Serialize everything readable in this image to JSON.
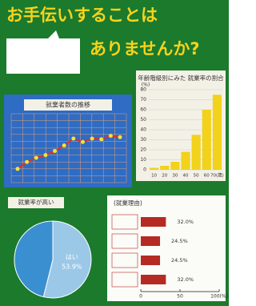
{
  "title_line1": "お手伝いすることは",
  "title_line2": "ありませんか?",
  "chart_data": [
    {
      "type": "line",
      "title": "就業者数の推移",
      "values": [
        2,
        3,
        3.6,
        4,
        4.6,
        5.4,
        6.4,
        5.9,
        6.4,
        6.3,
        6.8,
        6.6
      ],
      "color": "#e03020",
      "ylim": [
        0,
        10
      ]
    },
    {
      "type": "bar",
      "title": "年齢階級別にみた 就業率の割合",
      "categories": [
        "10",
        "20",
        "30",
        "40",
        "50",
        "60",
        "70(歳)"
      ],
      "values": [
        2,
        4,
        8,
        18,
        35,
        60,
        75
      ],
      "color": "#f2d21a",
      "ylim": [
        0,
        80
      ],
      "yticks": [
        0,
        10,
        20,
        30,
        40,
        50,
        60,
        70,
        80
      ],
      "ylabel": "(%)"
    },
    {
      "type": "pie",
      "title": "就業率が高い",
      "values": [
        53.9,
        46.1
      ],
      "value_labels": [
        "53.9%",
        null
      ],
      "colors": [
        "#9cc8e8",
        "#3a8fd0"
      ],
      "labels": [
        "はい",
        null
      ]
    },
    {
      "type": "hbar",
      "title": "(就業理由)",
      "categories": [
        null,
        null,
        null,
        null
      ],
      "values": [
        32.0,
        24.5,
        24.5,
        32.0
      ],
      "value_labels": [
        "32.0%",
        "24.5%",
        "24.5%",
        "32.0%"
      ],
      "color": "#b52a22",
      "xlim": [
        0,
        100
      ],
      "xticks": [
        0,
        50,
        {
          "value": 100,
          "label": "100(%)"
        }
      ]
    }
  ]
}
